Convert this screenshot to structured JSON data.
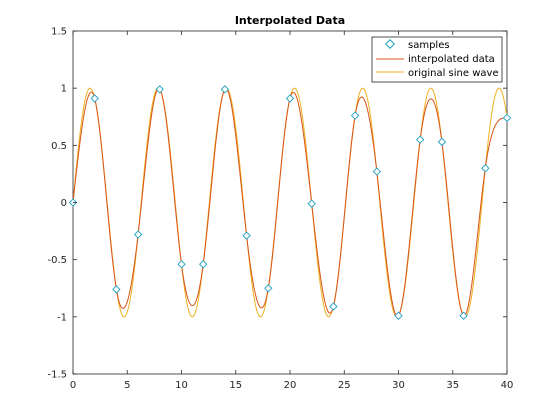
{
  "chart_data": {
    "type": "line",
    "title": "Interpolated Data",
    "xlabel": "",
    "ylabel": "",
    "xlim": [
      0,
      40
    ],
    "ylim": [
      -1.5,
      1.5
    ],
    "x_ticks": [
      "0",
      "5",
      "10",
      "15",
      "20",
      "25",
      "30",
      "35",
      "40"
    ],
    "y_ticks": [
      "-1.5",
      "-1",
      "-0.5",
      "0",
      "0.5",
      "1",
      "1.5"
    ],
    "grid": false,
    "legend_position": "top-right",
    "colors": {
      "samples": "#1f9fbf",
      "interpolated": "#d95319",
      "original": "#edb120",
      "axis": "#262626"
    },
    "series": [
      {
        "name": "samples",
        "style": "markers",
        "x": [
          0,
          2,
          4,
          6,
          8,
          10,
          12,
          14,
          16,
          18,
          20,
          22,
          24,
          26,
          28,
          30,
          32,
          34,
          36,
          38,
          40
        ],
        "y": [
          0,
          0.91,
          -0.76,
          -0.28,
          0.99,
          -0.54,
          -0.54,
          0.99,
          -0.29,
          -0.75,
          0.91,
          -0.01,
          -0.91,
          0.76,
          0.27,
          -0.99,
          0.55,
          0.53,
          -0.99,
          0.3,
          0.74
        ]
      },
      {
        "name": "interpolated data",
        "style": "line",
        "method": "spline-through-samples"
      },
      {
        "name": "original sine wave",
        "style": "line",
        "function": "sin(x)"
      }
    ]
  }
}
